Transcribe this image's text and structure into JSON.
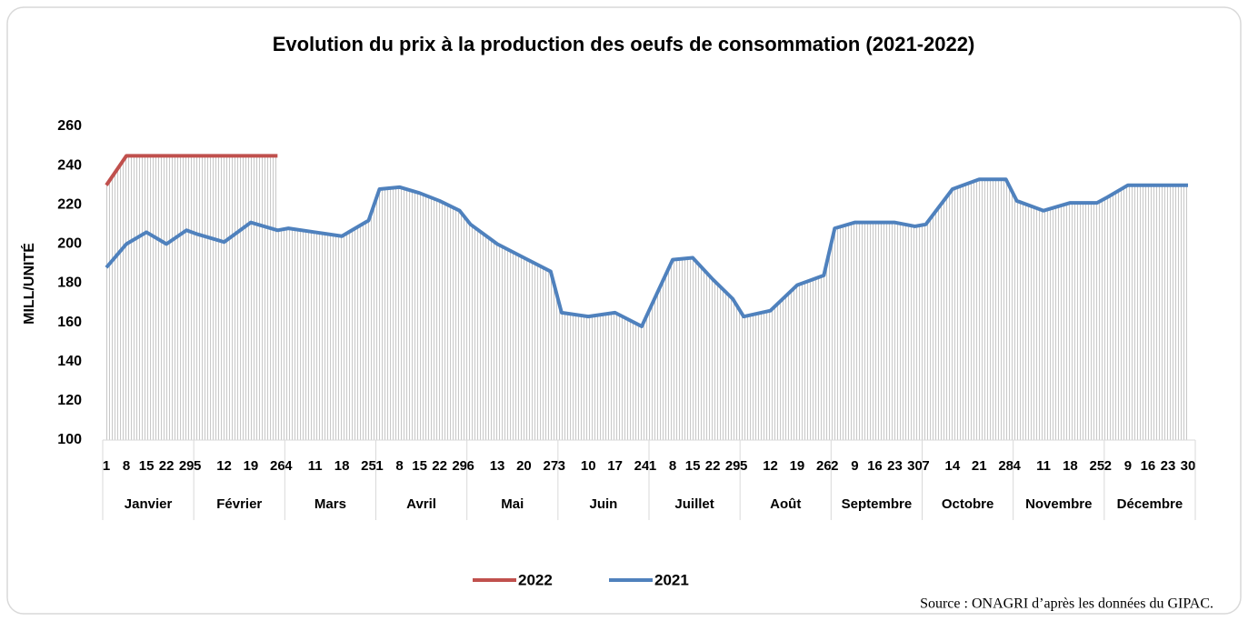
{
  "chart_data": {
    "type": "line",
    "title": "Evolution du prix à la production des oeufs de consommation (2021-2022)",
    "y_label": "MILL/UNITÉ",
    "source": "Source : ONAGRI d’après les données du GIPAC.",
    "months": [
      {
        "name": "Janvier",
        "days": [
          "1",
          "8",
          "15",
          "22",
          "29"
        ]
      },
      {
        "name": "Février",
        "days": [
          "5",
          "12",
          "19",
          "26"
        ]
      },
      {
        "name": "Mars",
        "days": [
          "4",
          "11",
          "18",
          "25"
        ]
      },
      {
        "name": "Avril",
        "days": [
          "1",
          "8",
          "15",
          "22",
          "29"
        ]
      },
      {
        "name": "Mai",
        "days": [
          "6",
          "13",
          "20",
          "27"
        ]
      },
      {
        "name": "Juin",
        "days": [
          "3",
          "10",
          "17",
          "24"
        ]
      },
      {
        "name": "Juillet",
        "days": [
          "1",
          "8",
          "15",
          "22",
          "29"
        ]
      },
      {
        "name": "Août",
        "days": [
          "5",
          "12",
          "19",
          "26"
        ]
      },
      {
        "name": "Septembre",
        "days": [
          "2",
          "9",
          "16",
          "23",
          "30"
        ]
      },
      {
        "name": "Octobre",
        "days": [
          "7",
          "14",
          "21",
          "28"
        ]
      },
      {
        "name": "Novembre",
        "days": [
          "4",
          "11",
          "18",
          "25"
        ]
      },
      {
        "name": "Décembre",
        "days": [
          "2",
          "9",
          "16",
          "23",
          "30"
        ]
      }
    ],
    "series": [
      {
        "name": "2022",
        "color": "#c0504d",
        "values": [
          230,
          245,
          245,
          245,
          245,
          245,
          245,
          245,
          245,
          null,
          null,
          null,
          null,
          null,
          null,
          null,
          null,
          null,
          null,
          null,
          null,
          null,
          null,
          null,
          null,
          null,
          null,
          null,
          null,
          null,
          null,
          null,
          null,
          null,
          null,
          null,
          null,
          null,
          null,
          null,
          null,
          null,
          null,
          null,
          null,
          null,
          null,
          null,
          null,
          null,
          null,
          null,
          null
        ]
      },
      {
        "name": "2021",
        "color": "#4f81bd",
        "values": [
          188,
          200,
          206,
          200,
          207,
          205,
          201,
          211,
          207,
          208,
          206,
          204,
          212,
          228,
          229,
          226,
          222,
          217,
          210,
          200,
          193,
          186,
          165,
          163,
          165,
          158,
          170,
          192,
          193,
          182,
          172,
          163,
          166,
          179,
          184,
          208,
          211,
          211,
          211,
          209,
          210,
          228,
          233,
          233,
          222,
          217,
          221,
          221,
          224,
          230,
          230,
          230,
          230
        ]
      }
    ],
    "ylim": [
      100,
      260
    ],
    "yticks": [
      100,
      120,
      140,
      160,
      180,
      200,
      220,
      240,
      260
    ],
    "grid": false
  }
}
